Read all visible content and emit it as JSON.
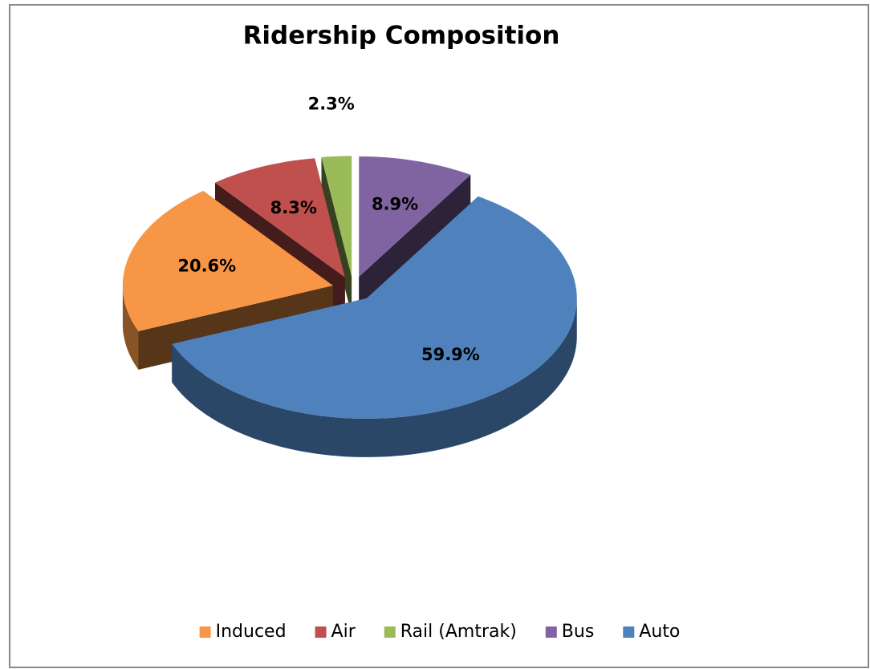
{
  "chart_data": {
    "type": "pie3d",
    "title": "Ridership Composition",
    "categories": [
      "Induced",
      "Air",
      "Rail (Amtrak)",
      "Bus",
      "Auto"
    ],
    "values": [
      20.6,
      8.3,
      2.3,
      8.9,
      59.9
    ],
    "value_labels": [
      "20.6%",
      "8.3%",
      "2.3%",
      "8.9%",
      "59.9%"
    ],
    "colors": [
      "#f79646",
      "#c0504d",
      "#9bbb59",
      "#8064a2",
      "#4f81bd"
    ],
    "legend": "bottom"
  }
}
